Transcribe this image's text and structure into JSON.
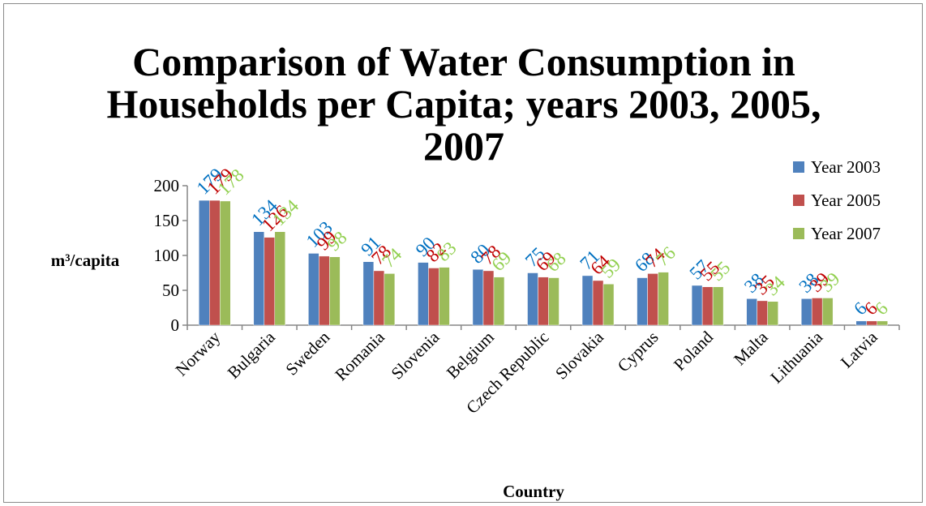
{
  "chart_data": {
    "type": "bar",
    "title_lines": [
      "Comparison of Water Consumption in",
      "Households per Capita; years 2003, 2005,",
      "2007"
    ],
    "xlabel": "Country",
    "ylabel": "m³/capita",
    "ylim": [
      0,
      200
    ],
    "yticks": [
      0,
      50,
      100,
      150,
      200
    ],
    "grid": false,
    "legend_position": "right",
    "categories": [
      "Norway",
      "Bulgaria",
      "Sweden",
      "Romania",
      "Slovenia",
      "Belgium",
      "Czech Republic",
      "Slovakia",
      "Cyprus",
      "Poland",
      "Malta",
      "Lithuania",
      "Latvia"
    ],
    "series": [
      {
        "name": "Year 2003",
        "color": "#4F81BD",
        "label_color": "#0070C0",
        "values": [
          179,
          134,
          103,
          91,
          90,
          80,
          75,
          71,
          68,
          57,
          38,
          38,
          6
        ]
      },
      {
        "name": "Year 2005",
        "color": "#C0504D",
        "label_color": "#C00000",
        "values": [
          179,
          126,
          99,
          78,
          82,
          78,
          69,
          64,
          74,
          55,
          35,
          39,
          6
        ]
      },
      {
        "name": "Year 2007",
        "color": "#9BBB59",
        "label_color": "#92D050",
        "values": [
          178,
          134,
          98,
          74,
          83,
          69,
          68,
          59,
          76,
          55,
          34,
          39,
          6
        ]
      }
    ]
  }
}
